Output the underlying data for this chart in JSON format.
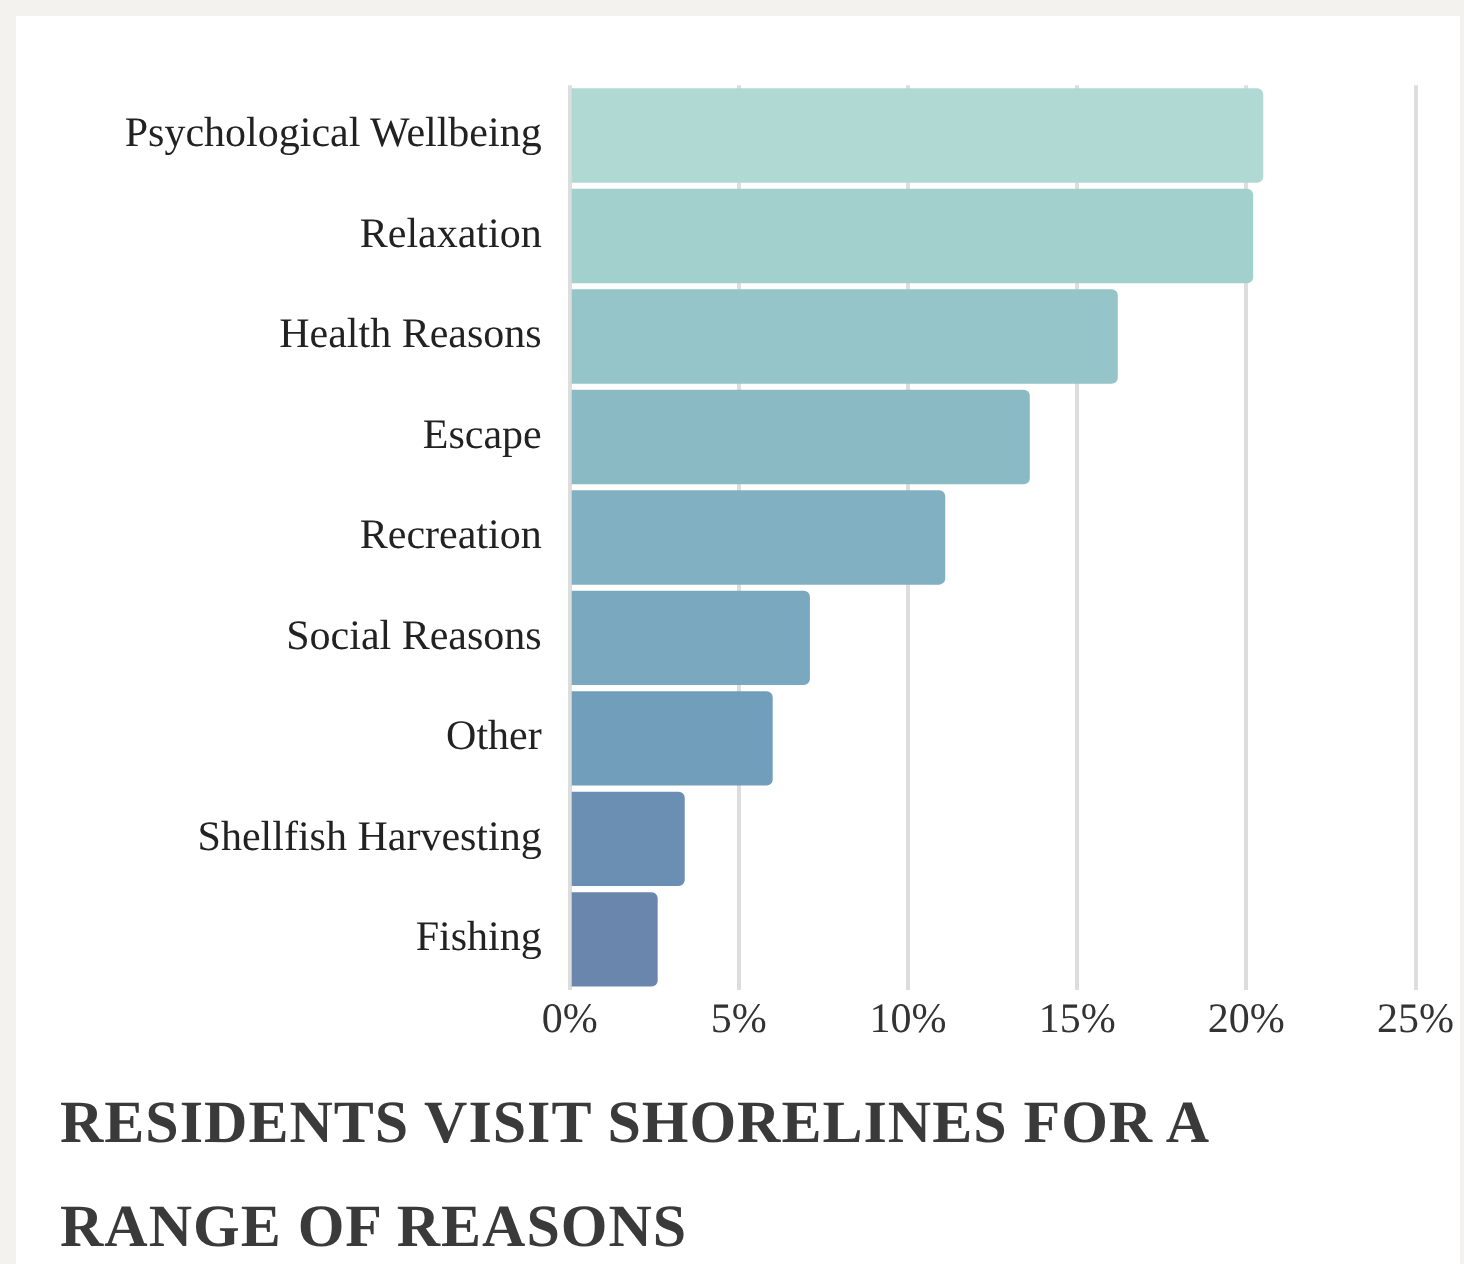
{
  "chart_data": {
    "type": "bar",
    "orientation": "horizontal",
    "title": "RESIDENTS VISIT SHORELINES FOR A RANGE OF REASONS",
    "categories": [
      "Psychological Wellbeing",
      "Relaxation",
      "Health Reasons",
      "Escape",
      "Recreation",
      "Social Reasons",
      "Other",
      "Shellfish Harvesting",
      "Fishing"
    ],
    "values": [
      20.5,
      20.2,
      16.2,
      13.6,
      11.1,
      7.1,
      6.0,
      3.4,
      2.6
    ],
    "colors": [
      "#b1d9d3",
      "#a2d0cc",
      "#95c5c8",
      "#8abbc5",
      "#80b0c2",
      "#79a8bf",
      "#719eba",
      "#6b8fb3",
      "#6a86ad"
    ],
    "xlim": [
      0,
      25
    ],
    "xticks": [
      {
        "value": 0,
        "label": "0%"
      },
      {
        "value": 5,
        "label": "5%"
      },
      {
        "value": 10,
        "label": "10%"
      },
      {
        "value": 15,
        "label": "15%"
      },
      {
        "value": 20,
        "label": "20%"
      },
      {
        "value": 25,
        "label": "25%"
      }
    ],
    "grid": "x"
  }
}
